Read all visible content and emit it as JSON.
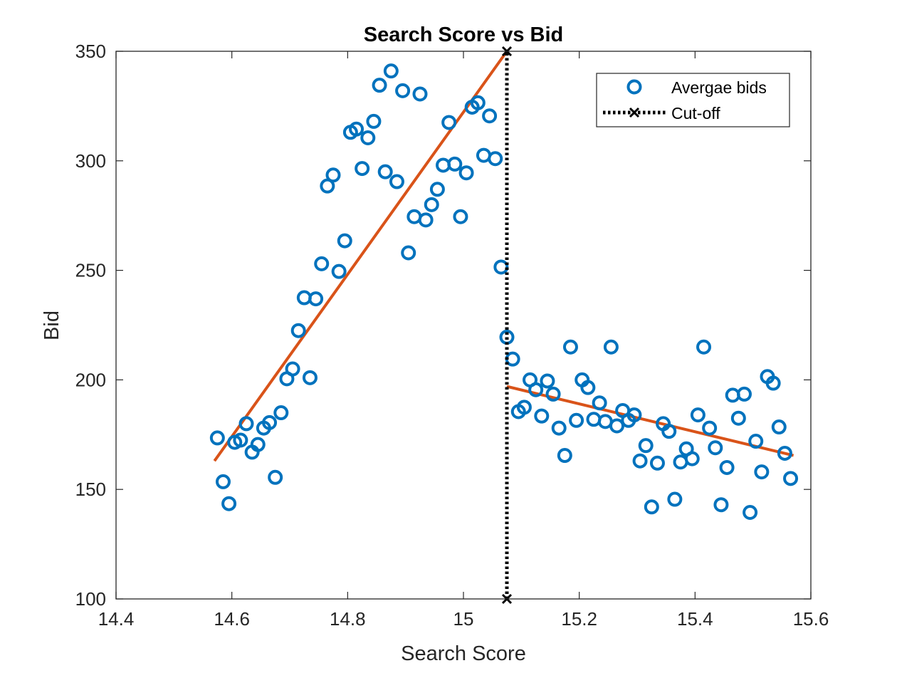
{
  "chart_data": {
    "type": "scatter",
    "title": "Search Score vs Bid",
    "xlabel": "Search Score",
    "ylabel": "Bid",
    "xlim": [
      14.4,
      15.6
    ],
    "ylim": [
      100,
      350
    ],
    "xticks": [
      14.4,
      14.6,
      14.8,
      15,
      15.2,
      15.4,
      15.6
    ],
    "xtick_labels": [
      "14.4",
      "14.6",
      "14.8",
      "15",
      "15.2",
      "15.4",
      "15.6"
    ],
    "yticks": [
      100,
      150,
      200,
      250,
      300,
      350
    ],
    "ytick_labels": [
      "100",
      "150",
      "200",
      "250",
      "300",
      "350"
    ],
    "grid": false,
    "legend": {
      "position": "top-right",
      "entries": [
        "Avergae bids",
        "Cut-off"
      ]
    },
    "colors": {
      "points": "#0072BD",
      "fit": "#D95319",
      "cutoff": "#000000"
    },
    "series": [
      {
        "name": "Avergae bids",
        "type": "scatter",
        "points": [
          [
            14.575,
            173.5
          ],
          [
            14.585,
            153.5
          ],
          [
            14.595,
            143.5
          ],
          [
            14.605,
            171.5
          ],
          [
            14.615,
            172.5
          ],
          [
            14.625,
            180
          ],
          [
            14.635,
            167
          ],
          [
            14.645,
            170.5
          ],
          [
            14.655,
            178
          ],
          [
            14.665,
            180.5
          ],
          [
            14.675,
            155.5
          ],
          [
            14.685,
            185
          ],
          [
            14.695,
            200.5
          ],
          [
            14.705,
            205
          ],
          [
            14.715,
            222.5
          ],
          [
            14.725,
            237.5
          ],
          [
            14.735,
            201
          ],
          [
            14.745,
            237
          ],
          [
            14.755,
            253
          ],
          [
            14.765,
            288.5
          ],
          [
            14.775,
            293.5
          ],
          [
            14.785,
            249.5
          ],
          [
            14.795,
            263.5
          ],
          [
            14.805,
            313
          ],
          [
            14.815,
            314.5
          ],
          [
            14.825,
            296.5
          ],
          [
            14.835,
            310.5
          ],
          [
            14.845,
            318
          ],
          [
            14.855,
            334.5
          ],
          [
            14.865,
            295
          ],
          [
            14.875,
            341
          ],
          [
            14.885,
            290.5
          ],
          [
            14.895,
            332
          ],
          [
            14.905,
            258
          ],
          [
            14.915,
            274.5
          ],
          [
            14.925,
            330.5
          ],
          [
            14.935,
            273
          ],
          [
            14.945,
            280
          ],
          [
            14.955,
            287
          ],
          [
            14.965,
            298
          ],
          [
            14.975,
            317.5
          ],
          [
            14.985,
            298.5
          ],
          [
            14.995,
            274.5
          ],
          [
            15.005,
            294.5
          ],
          [
            15.015,
            324.5
          ],
          [
            15.025,
            326.5
          ],
          [
            15.035,
            302.5
          ],
          [
            15.045,
            320.5
          ],
          [
            15.055,
            301
          ],
          [
            15.065,
            251.5
          ],
          [
            15.075,
            219.5
          ],
          [
            15.085,
            209.5
          ],
          [
            15.095,
            185.5
          ],
          [
            15.105,
            187.5
          ],
          [
            15.115,
            200
          ],
          [
            15.125,
            195.5
          ],
          [
            15.135,
            183.5
          ],
          [
            15.145,
            199.5
          ],
          [
            15.155,
            193.5
          ],
          [
            15.165,
            178
          ],
          [
            15.175,
            165.5
          ],
          [
            15.185,
            215
          ],
          [
            15.195,
            181.5
          ],
          [
            15.205,
            200
          ],
          [
            15.215,
            196.5
          ],
          [
            15.225,
            182
          ],
          [
            15.235,
            189.5
          ],
          [
            15.245,
            181
          ],
          [
            15.255,
            215
          ],
          [
            15.265,
            179
          ],
          [
            15.275,
            186
          ],
          [
            15.285,
            181.5
          ],
          [
            15.295,
            184
          ],
          [
            15.305,
            163
          ],
          [
            15.315,
            170
          ],
          [
            15.325,
            142
          ],
          [
            15.335,
            162
          ],
          [
            15.345,
            180
          ],
          [
            15.355,
            176.5
          ],
          [
            15.365,
            145.5
          ],
          [
            15.375,
            162.5
          ],
          [
            15.385,
            168.5
          ],
          [
            15.395,
            164
          ],
          [
            15.405,
            184
          ],
          [
            15.415,
            215
          ],
          [
            15.425,
            178
          ],
          [
            15.435,
            169
          ],
          [
            15.445,
            143
          ],
          [
            15.455,
            160
          ],
          [
            15.465,
            193
          ],
          [
            15.475,
            182.5
          ],
          [
            15.485,
            193.5
          ],
          [
            15.495,
            139.5
          ],
          [
            15.505,
            172
          ],
          [
            15.515,
            158
          ],
          [
            15.525,
            201.5
          ],
          [
            15.535,
            198.5
          ],
          [
            15.545,
            178.5
          ],
          [
            15.555,
            166.5
          ],
          [
            15.565,
            155
          ]
        ]
      },
      {
        "type": "line",
        "role": "fit-left",
        "points": [
          [
            14.57,
            163
          ],
          [
            15.075,
            350
          ]
        ]
      },
      {
        "type": "line",
        "role": "fit-right",
        "points": [
          [
            15.075,
            197
          ],
          [
            15.57,
            165.5
          ]
        ]
      },
      {
        "name": "Cut-off",
        "type": "line",
        "style": "dotted",
        "marker": "x",
        "points": [
          [
            15.075,
            100
          ],
          [
            15.075,
            350
          ]
        ]
      }
    ]
  }
}
